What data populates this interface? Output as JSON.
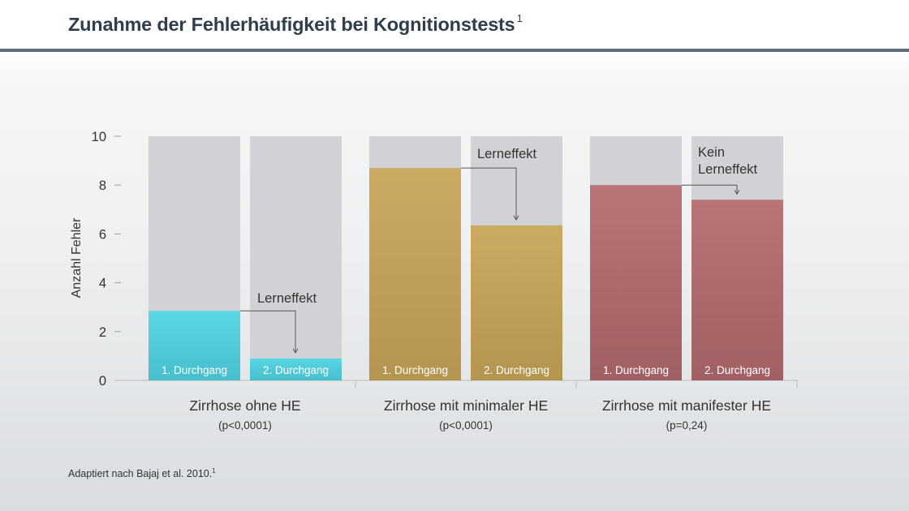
{
  "header": {
    "title": "Zunahme der Fehlerhäufigkeit bei Kognitionstests",
    "title_superscript": "1"
  },
  "footnote": {
    "text": "Adaptiert nach Bajaj et al. 2010.",
    "superscript": "1"
  },
  "colors": {
    "background_bar": "#d1d2d5",
    "ohne_he": "#4fd3e3",
    "minimale_he": "#c8a558",
    "manifeste_he": "#b36b6e",
    "header_rule": "#5f6d78",
    "title": "#2f3e4c"
  },
  "chart_data": {
    "type": "bar",
    "ylabel": "Anzahl Fehler",
    "ylim": [
      0,
      10
    ],
    "yticks": [
      0,
      2,
      4,
      6,
      8,
      10
    ],
    "bar_labels": [
      "1. Durchgang",
      "2. Durchgang"
    ],
    "groups": [
      {
        "name": "Zirrhose ohne HE",
        "pvalue": "(p<0,0001)",
        "values": [
          2.85,
          0.9
        ],
        "annotation": [
          "Lerneffekt"
        ],
        "color_key": "ohne_he"
      },
      {
        "name": "Zirrhose mit minimaler HE",
        "pvalue": "(p<0,0001)",
        "values": [
          8.7,
          6.35
        ],
        "annotation": [
          "Lerneffekt"
        ],
        "color_key": "minimale_he"
      },
      {
        "name": "Zirrhose mit manifester HE",
        "pvalue": "(p=0,24)",
        "values": [
          8.0,
          7.4
        ],
        "annotation": [
          "Kein",
          "Lerneffekt"
        ],
        "color_key": "manifeste_he"
      }
    ]
  }
}
